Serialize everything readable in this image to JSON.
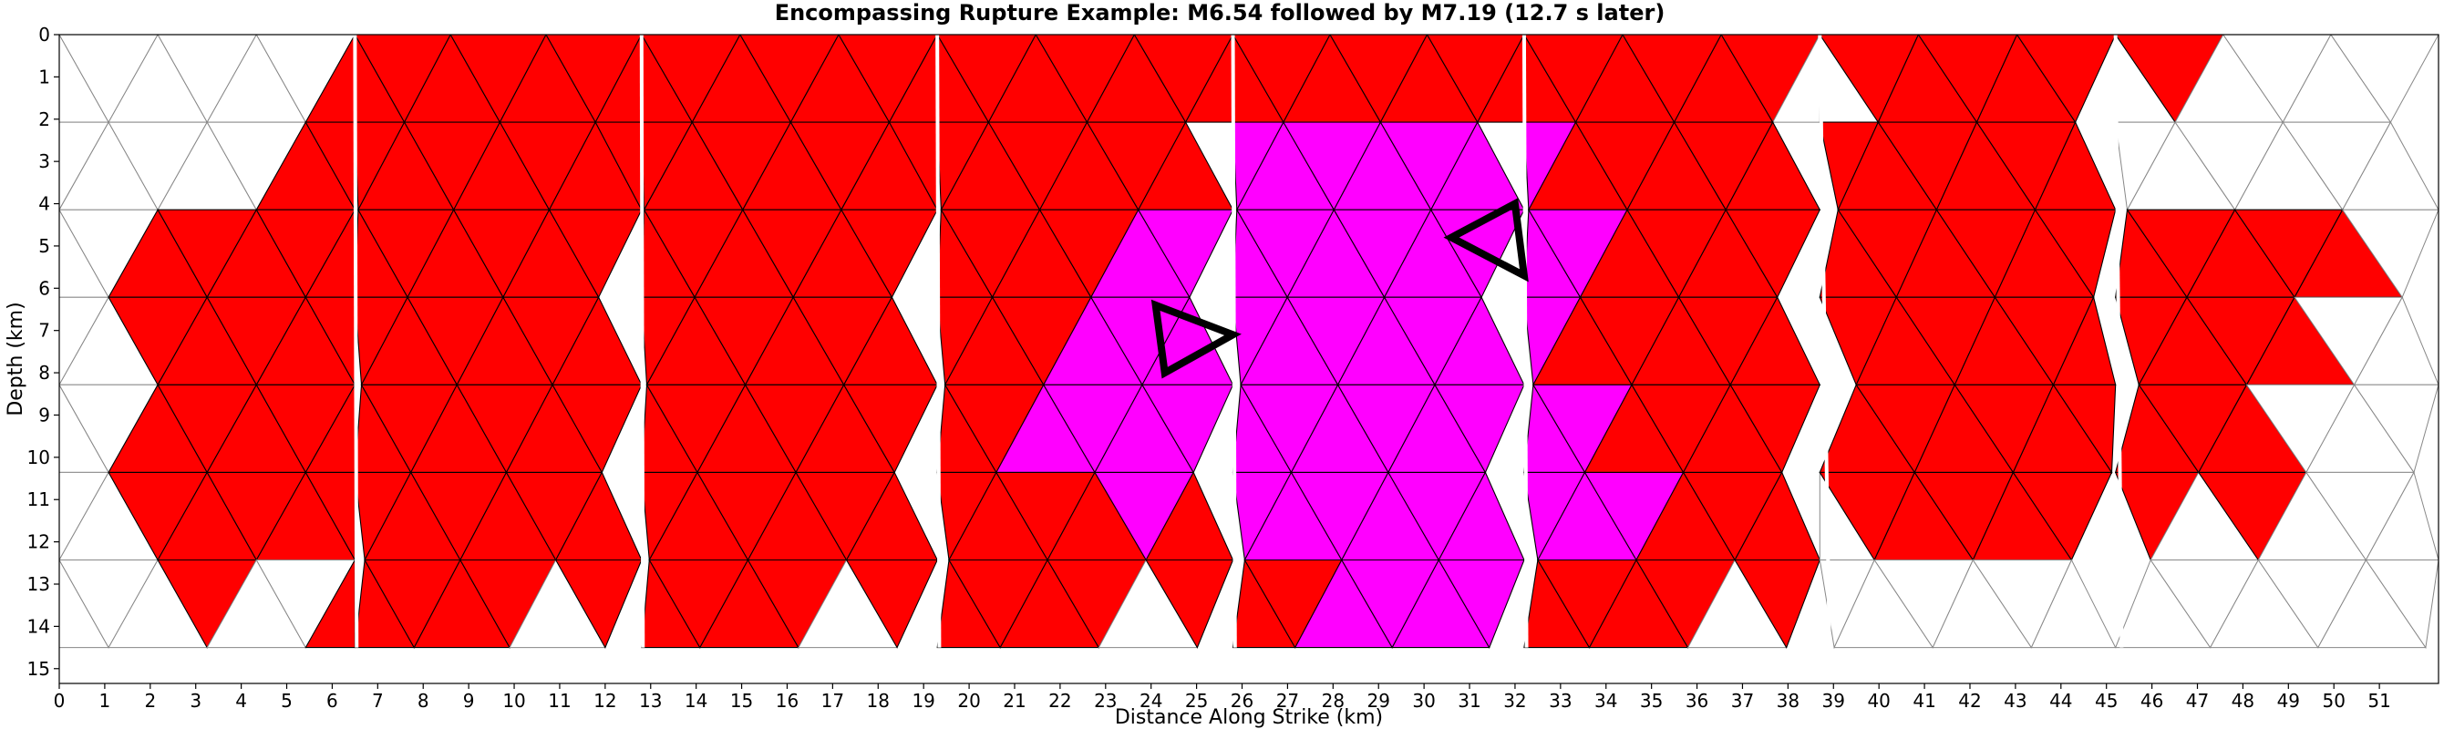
{
  "chart_data": {
    "type": "heatmap",
    "title": "Encompassing Rupture Example: M6.54 followed by M7.19 (12.7 s later)",
    "xlabel": "Distance Along Strike (km)",
    "ylabel": "Depth (km)",
    "xlim": [
      0,
      52.3
    ],
    "ylim": [
      15.35,
      0
    ],
    "x_ticks": [
      0,
      1,
      2,
      3,
      4,
      5,
      6,
      7,
      8,
      9,
      10,
      11,
      12,
      13,
      14,
      15,
      16,
      17,
      18,
      19,
      20,
      21,
      22,
      23,
      24,
      25,
      26,
      27,
      28,
      29,
      30,
      31,
      32,
      33,
      34,
      35,
      36,
      37,
      38,
      39,
      40,
      41,
      42,
      43,
      44,
      45,
      46,
      47,
      48,
      49,
      50,
      51
    ],
    "y_ticks": [
      0,
      1,
      2,
      3,
      4,
      5,
      6,
      7,
      8,
      9,
      10,
      11,
      12,
      13,
      14,
      15
    ],
    "grid": false,
    "colors": {
      "first_rupture": "#ff00ff",
      "second_rupture": "#ff0000",
      "unruptured": "#ffffff",
      "mesh_edge": "#888888",
      "hypocenter_outline": "#000000"
    },
    "depth_range_km": [
      0,
      14.5
    ],
    "mesh_rows": 7,
    "mesh_row_height_km": 2.07,
    "fault_sections": [
      {
        "x_start": 0.0,
        "x_end": 6.5,
        "skew_km": 0.0
      },
      {
        "x_start": 6.5,
        "x_end": 12.8,
        "skew_km": 0.25
      },
      {
        "x_start": 12.8,
        "x_end": 19.3,
        "skew_km": 0.2
      },
      {
        "x_start": 19.3,
        "x_end": 25.8,
        "skew_km": 0.3
      },
      {
        "x_start": 25.8,
        "x_end": 32.2,
        "skew_km": 0.3
      },
      {
        "x_start": 32.2,
        "x_end": 38.7,
        "skew_km": 0.35
      },
      {
        "x_start": 38.7,
        "x_end": 45.2,
        "skew_km": 1.4
      },
      {
        "x_start": 45.2,
        "x_end": 52.3,
        "skew_km": 0.9
      }
    ],
    "first_rupture_polygon_km": [
      [
        21.1,
        6.2
      ],
      [
        27.6,
        1.5
      ],
      [
        33.0,
        1.5
      ],
      [
        33.8,
        5.8
      ],
      [
        33.0,
        8.0
      ],
      [
        34.2,
        9.8
      ],
      [
        35.6,
        12.0
      ],
      [
        32.1,
        12.0
      ],
      [
        32.1,
        14.5
      ],
      [
        28.6,
        14.5
      ],
      [
        26.0,
        12.0
      ],
      [
        25.6,
        12.0
      ],
      [
        21.1,
        9.6
      ],
      [
        22.7,
        8.6
      ],
      [
        22.7,
        7.2
      ]
    ],
    "second_rupture_regions_km": [
      [
        [
          6.5,
          0
        ],
        [
          19.3,
          0
        ],
        [
          19.3,
          14.5
        ],
        [
          6.5,
          14.5
        ]
      ],
      [
        [
          19.3,
          0
        ],
        [
          38.7,
          0
        ],
        [
          38.7,
          14.5
        ],
        [
          19.3,
          14.5
        ]
      ],
      [
        [
          1.7,
          4.8
        ],
        [
          6.5,
          2.0
        ],
        [
          6.5,
          12.0
        ],
        [
          4.9,
          12.5
        ],
        [
          3.3,
          13.6
        ],
        [
          1.7,
          11.3
        ]
      ],
      [
        [
          1.5,
          14.5
        ],
        [
          3.2,
          13.5
        ],
        [
          3.2,
          14.5
        ]
      ],
      [
        [
          38.9,
          0
        ],
        [
          45.1,
          0
        ],
        [
          45.1,
          12.5
        ],
        [
          39.1,
          12.5
        ]
      ],
      [
        [
          45.3,
          0.8
        ],
        [
          47.6,
          0
        ],
        [
          48.2,
          0.9
        ],
        [
          45.8,
          1.5
        ]
      ],
      [
        [
          45.3,
          4.5
        ],
        [
          48.8,
          3.6
        ],
        [
          50.5,
          4.6
        ],
        [
          51.0,
          5.8
        ],
        [
          49.5,
          7.5
        ],
        [
          49.2,
          9.2
        ],
        [
          48.5,
          11.3
        ],
        [
          46.3,
          11.8
        ],
        [
          45.3,
          11.0
        ]
      ]
    ],
    "second_rupture_gaps_km": [
      [
        [
          16.5,
          14.5
        ],
        [
          17.5,
          13.2
        ],
        [
          18.4,
          14.5
        ]
      ],
      [
        [
          11.1,
          13.2
        ],
        [
          11.1,
          14.5
        ],
        [
          9.7,
          14.5
        ]
      ],
      [
        [
          35.0,
          13.8
        ],
        [
          36.2,
          12.9
        ],
        [
          37.4,
          13.8
        ],
        [
          36.8,
          14.5
        ],
        [
          35.6,
          14.5
        ]
      ],
      [
        [
          23.1,
          13.0
        ],
        [
          24.5,
          13.8
        ],
        [
          23.1,
          14.5
        ]
      ]
    ],
    "hypocenter_triangles_km": [
      {
        "label": "M6.54 hypocenter",
        "points": [
          [
            24.1,
            6.4
          ],
          [
            25.8,
            7.1
          ],
          [
            24.3,
            8.0
          ]
        ]
      },
      {
        "label": "M7.19 hypocenter",
        "points": [
          [
            30.6,
            4.8
          ],
          [
            32.0,
            4.0
          ],
          [
            32.2,
            5.7
          ]
        ]
      }
    ]
  }
}
